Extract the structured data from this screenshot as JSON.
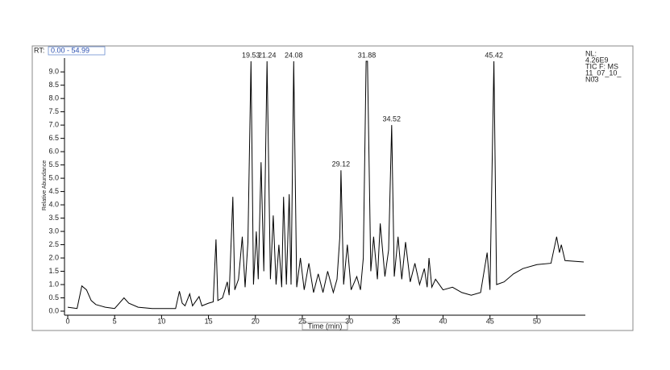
{
  "chart_data": {
    "type": "line",
    "rt_label": "RT:",
    "rt_range": "0.00 - 54.99",
    "info": [
      "NL:",
      "4.26E9",
      "TIC F: MS",
      "11_07_10_",
      "N03"
    ],
    "x_label": "Time (min)",
    "y_label": "Relative Abundance",
    "color": "#000000",
    "xlim": [
      0,
      54.99
    ],
    "ylim": [
      0,
      9.4
    ],
    "xticks": [
      0,
      5,
      10,
      15,
      20,
      25,
      30,
      35,
      40,
      45,
      50
    ],
    "yticks": [
      {
        "value": 0,
        "label": "0.0"
      },
      {
        "value": 0.5,
        "label": "0.5"
      },
      {
        "value": 1,
        "label": "1.0"
      },
      {
        "value": 1.5,
        "label": "1.5"
      },
      {
        "value": 2,
        "label": "2.0"
      },
      {
        "value": 2.5,
        "label": "2.5"
      },
      {
        "value": 3,
        "label": "3.0"
      },
      {
        "value": 3.5,
        "label": "3.5"
      },
      {
        "value": 4,
        "label": "4.0"
      },
      {
        "value": 4.5,
        "label": "4.5"
      },
      {
        "value": 5,
        "label": "5.0"
      },
      {
        "value": 5.5,
        "label": "5.5"
      },
      {
        "value": 6,
        "label": "6.0"
      },
      {
        "value": 6.5,
        "label": "6.5"
      },
      {
        "value": 7,
        "label": "7.0"
      },
      {
        "value": 7.5,
        "label": "7.5"
      },
      {
        "value": 8,
        "label": "8.0"
      },
      {
        "value": 8.5,
        "label": "8.5"
      },
      {
        "value": 9,
        "label": "9.0"
      }
    ],
    "x": [
      0,
      1,
      1.5,
      2,
      2.5,
      3,
      4,
      5,
      6,
      6.5,
      7.5,
      9,
      11.5,
      11.9,
      12.2,
      12.5,
      13,
      13.3,
      14,
      14.3,
      15,
      15.5,
      15.8,
      16,
      16.5,
      17,
      17.2,
      17.6,
      17.8,
      18.2,
      18.6,
      18.9,
      19.2,
      19.53,
      19.8,
      20.1,
      20.3,
      20.6,
      20.9,
      21.24,
      21.6,
      21.9,
      22.2,
      22.5,
      22.8,
      23,
      23.3,
      23.6,
      23.8,
      24.08,
      24.4,
      24.8,
      25.2,
      25.7,
      26.2,
      26.7,
      27.2,
      27.7,
      28.3,
      28.7,
      29,
      29.12,
      29.4,
      29.8,
      30.2,
      30.8,
      31.2,
      31.5,
      31.8,
      31.95,
      32.3,
      32.6,
      33,
      33.3,
      33.8,
      34.2,
      34.52,
      34.8,
      35.2,
      35.6,
      36,
      36.5,
      37,
      37.5,
      38,
      38.3,
      38.5,
      38.8,
      39.2,
      40,
      41,
      42,
      43,
      44,
      44.7,
      45,
      45.42,
      45.7,
      46.5,
      47.5,
      48.5,
      50,
      51.5,
      52.1,
      52.4,
      52.6,
      53,
      54.99
    ],
    "values": [
      0.15,
      0.1,
      0.95,
      0.8,
      0.4,
      0.25,
      0.15,
      0.1,
      0.5,
      0.3,
      0.15,
      0.1,
      0.1,
      0.75,
      0.3,
      0.2,
      0.65,
      0.2,
      0.55,
      0.2,
      0.3,
      0.35,
      2.7,
      0.4,
      0.5,
      1.1,
      0.6,
      4.3,
      0.8,
      1.2,
      2.8,
      0.9,
      2.6,
      9.4,
      1,
      3,
      1.2,
      5.6,
      1.5,
      9.4,
      1.2,
      3.6,
      1,
      2.5,
      0.9,
      4.3,
      1,
      4.4,
      1,
      9.4,
      0.9,
      2,
      0.8,
      1.8,
      0.7,
      1.4,
      0.7,
      1.5,
      0.7,
      1.2,
      2.8,
      5.3,
      1,
      2.5,
      0.8,
      1.3,
      0.8,
      2,
      9.4,
      9.4,
      1.5,
      2.8,
      1.2,
      3.3,
      1.3,
      2.3,
      7,
      1.3,
      2.8,
      1.2,
      2.6,
      1.1,
      1.8,
      1,
      1.6,
      0.9,
      2,
      0.9,
      1.2,
      0.8,
      0.9,
      0.7,
      0.6,
      0.7,
      2.2,
      0.8,
      9.4,
      1,
      1.1,
      1.4,
      1.6,
      1.75,
      1.8,
      2.8,
      2.2,
      2.5,
      1.9,
      1.85
    ],
    "peak_labels": [
      {
        "x": 19.53,
        "y": 9.4
      },
      {
        "x": 21.24,
        "y": 9.4
      },
      {
        "x": 24.08,
        "y": 9.4
      },
      {
        "x": 29.12,
        "y": 5.3
      },
      {
        "x": 31.88,
        "y": 9.4
      },
      {
        "x": 34.52,
        "y": 7
      },
      {
        "x": 45.42,
        "y": 9.4
      }
    ]
  }
}
